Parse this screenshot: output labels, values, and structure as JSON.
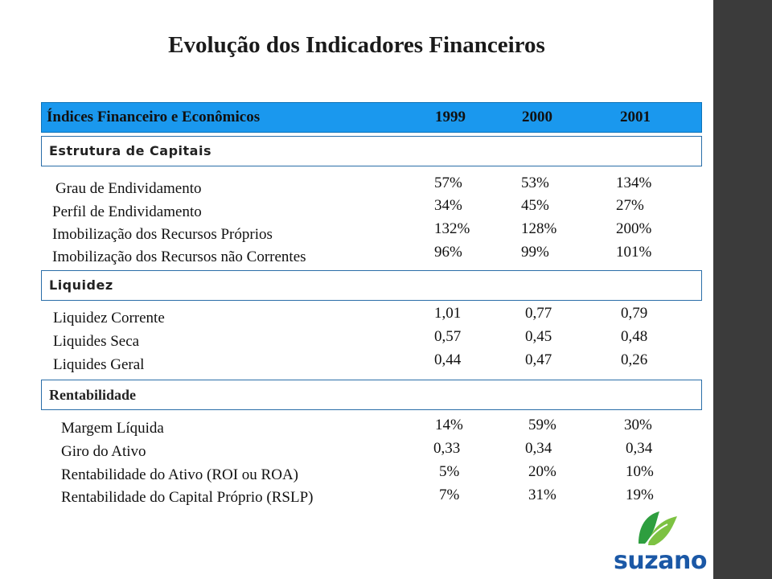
{
  "title": "Evolução dos Indicadores Financeiros",
  "header": {
    "label": "Índices Financeiro e Econômicos",
    "years": [
      "1999",
      "2000",
      "2001"
    ]
  },
  "sections": {
    "estrutura": {
      "title": "Estrutura de Capitais",
      "rows": [
        {
          "label": "Grau de Endividamento",
          "v1999": "57%",
          "v2000": "53%",
          "v2001": "134%"
        },
        {
          "label": "Perfil de Endividamento",
          "v1999": "34%",
          "v2000": "45%",
          "v2001": "27%"
        },
        {
          "label": "Imobilização dos Recursos Próprios",
          "v1999": "132%",
          "v2000": "128%",
          "v2001": "200%"
        },
        {
          "label": "Imobilização dos Recursos não Correntes",
          "v1999": "96%",
          "v2000": "99%",
          "v2001": "101%"
        }
      ]
    },
    "liquidez": {
      "title": "Liquidez",
      "rows": [
        {
          "label": "Liquidez Corrente",
          "v1999": "1,01",
          "v2000": "0,77",
          "v2001": "0,79"
        },
        {
          "label": "Liquides Seca",
          "v1999": "0,57",
          "v2000": "0,45",
          "v2001": "0,48"
        },
        {
          "label": "Liquides Geral",
          "v1999": "0,44",
          "v2000": "0,47",
          "v2001": "0,26"
        }
      ]
    },
    "rentabilidade": {
      "title": "Rentabilidade",
      "rows": [
        {
          "label": "Margem Líquida",
          "v1999": "14%",
          "v2000": "59%",
          "v2001": "30%"
        },
        {
          "label": "Giro do Ativo",
          "v1999": "0,33",
          "v2000": "0,34",
          "v2001": "0,34"
        },
        {
          "label": "Rentabilidade do Ativo (ROI ou ROA)",
          "v1999": "5%",
          "v2000": "20%",
          "v2001": "10%"
        },
        {
          "label": "Rentabilidade do Capital Próprio (RSLP)",
          "v1999": "7%",
          "v2000": "31%",
          "v2001": "19%"
        }
      ]
    }
  },
  "logo": {
    "text": "suzano",
    "icon": "suzano-leaf-icon",
    "colors": [
      "#2e9e3f",
      "#7dc242",
      "#1b58a6"
    ]
  }
}
